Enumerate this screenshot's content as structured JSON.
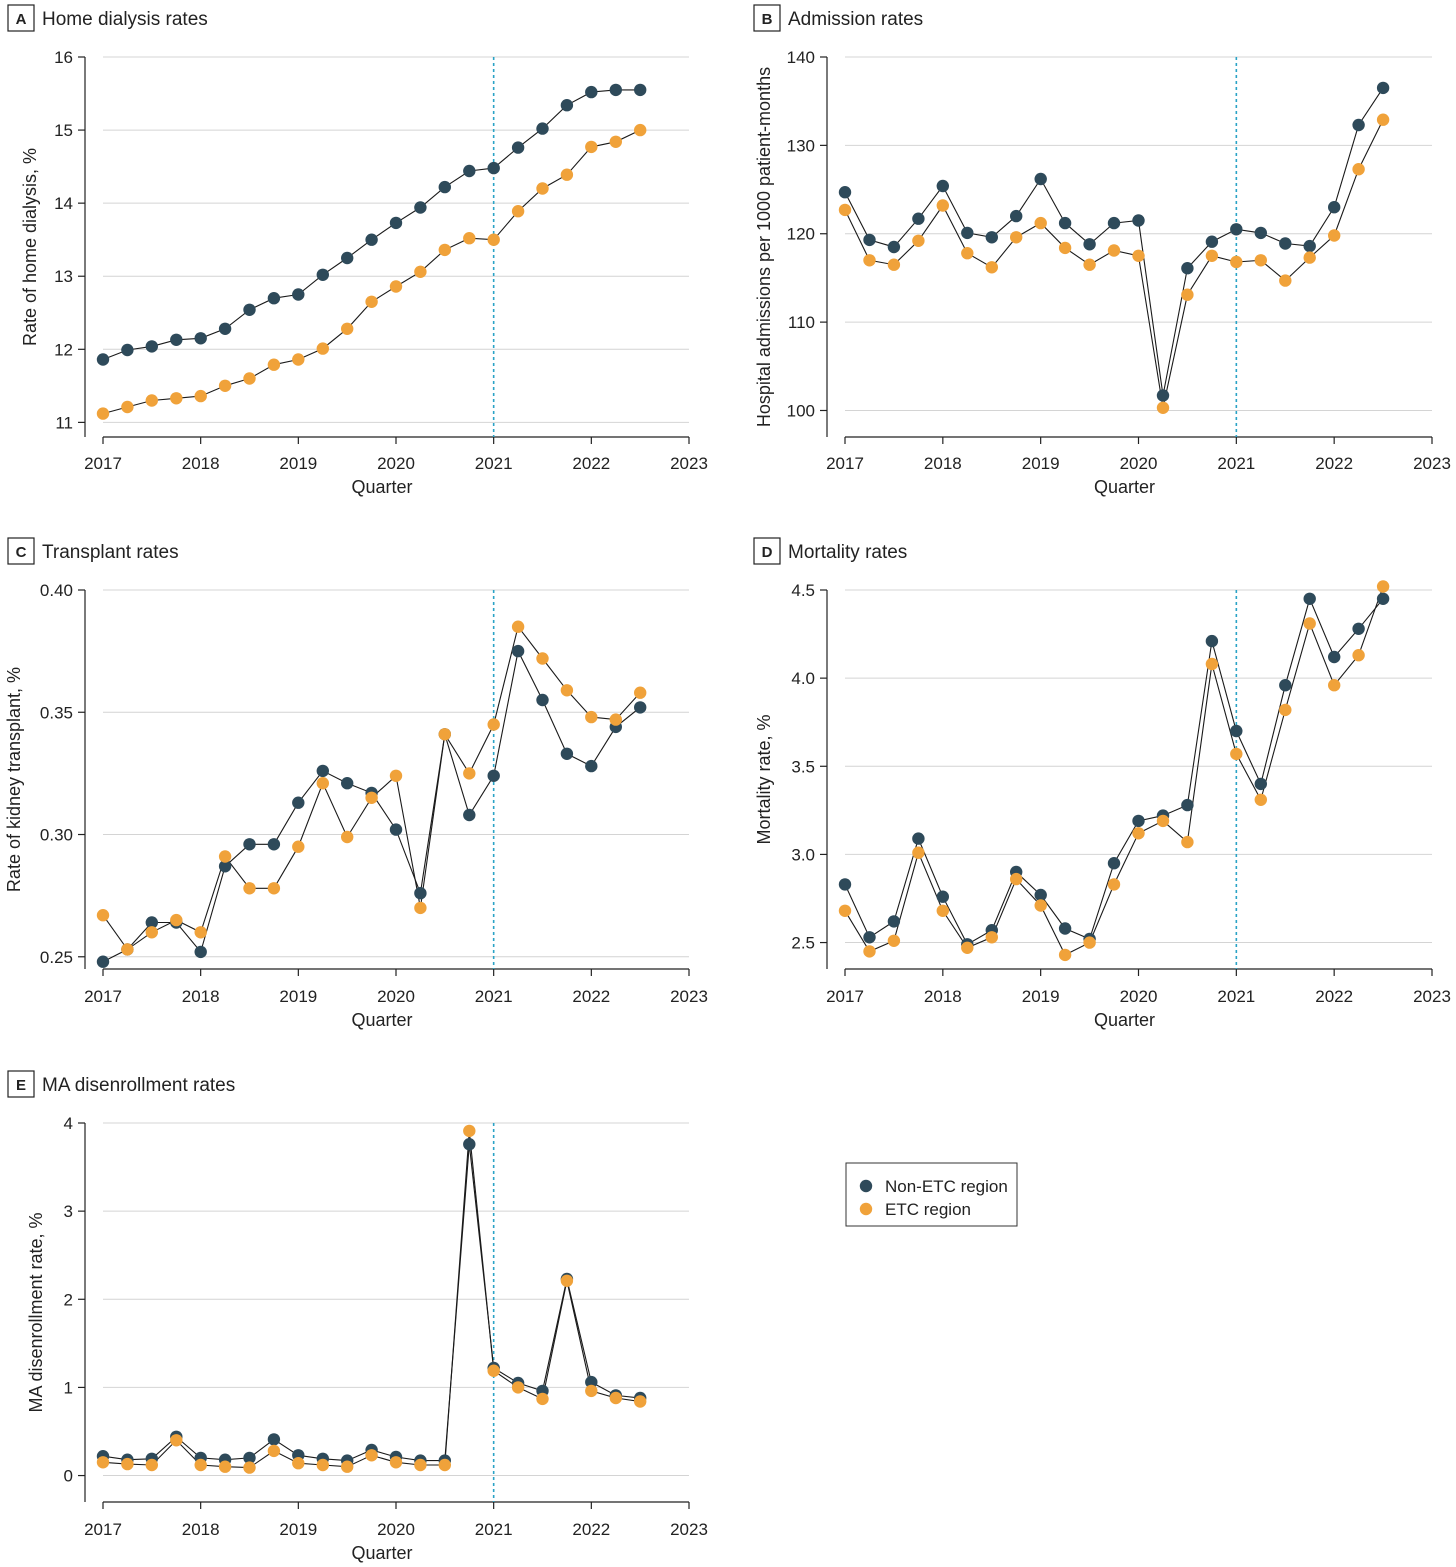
{
  "colors": {
    "non_etc": "#2e4a5a",
    "etc": "#f0a23a",
    "grid": "#d4d4d4",
    "reference_line": "#2aa3c6",
    "line": "#1a1a1a",
    "text": "#222222"
  },
  "legend": {
    "placement": "between panels D and E, right",
    "items": [
      "Non-ETC region",
      "ETC region"
    ]
  },
  "chart_data": [
    {
      "panel": "A",
      "title": "Home dialysis rates",
      "type": "line",
      "xlabel": "Quarter",
      "ylabel": "Rate of home dialysis, %",
      "xlim": [
        2017,
        2023
      ],
      "ylim": [
        10.8,
        16
      ],
      "xticks": [
        2017,
        2018,
        2019,
        2020,
        2021,
        2022,
        2023
      ],
      "yticks": [
        11,
        12,
        13,
        14,
        15,
        16
      ],
      "ytick_labels": [
        "11",
        "12",
        "13",
        "14",
        "15",
        "16"
      ],
      "grid": true,
      "vline": 2021,
      "x": [
        2017,
        2017.25,
        2017.5,
        2017.75,
        2018,
        2018.25,
        2018.5,
        2018.75,
        2019,
        2019.25,
        2019.5,
        2019.75,
        2020,
        2020.25,
        2020.5,
        2020.75,
        2021,
        2021.25,
        2021.5,
        2021.75,
        2022,
        2022.25,
        2022.5
      ],
      "series": [
        {
          "name": "Non-ETC region",
          "values": [
            11.86,
            11.99,
            12.04,
            12.13,
            12.15,
            12.28,
            12.54,
            12.7,
            12.75,
            13.02,
            13.25,
            13.5,
            13.73,
            13.94,
            14.22,
            14.44,
            14.48,
            14.76,
            15.02,
            15.34,
            15.52,
            15.55,
            15.55
          ]
        },
        {
          "name": "ETC region",
          "values": [
            11.12,
            11.21,
            11.3,
            11.33,
            11.36,
            11.5,
            11.6,
            11.79,
            11.86,
            12.01,
            12.28,
            12.65,
            12.86,
            13.06,
            13.36,
            13.52,
            13.5,
            13.89,
            14.2,
            14.39,
            14.77,
            14.84,
            15.0
          ]
        }
      ]
    },
    {
      "panel": "B",
      "title": "Admission rates",
      "type": "line",
      "xlabel": "Quarter",
      "ylabel": "Hospital admissions per 1000 patient-months",
      "xlim": [
        2017,
        2023
      ],
      "ylim": [
        97,
        140
      ],
      "xticks": [
        2017,
        2018,
        2019,
        2020,
        2021,
        2022,
        2023
      ],
      "yticks": [
        100,
        110,
        120,
        130,
        140
      ],
      "ytick_labels": [
        "100",
        "110",
        "120",
        "130",
        "140"
      ],
      "grid": true,
      "vline": 2021,
      "x": [
        2017,
        2017.25,
        2017.5,
        2017.75,
        2018,
        2018.25,
        2018.5,
        2018.75,
        2019,
        2019.25,
        2019.5,
        2019.75,
        2020,
        2020.25,
        2020.5,
        2020.75,
        2021,
        2021.25,
        2021.5,
        2021.75,
        2022,
        2022.25,
        2022.5
      ],
      "series": [
        {
          "name": "Non-ETC region",
          "values": [
            124.7,
            119.3,
            118.5,
            121.7,
            125.4,
            120.1,
            119.6,
            122.0,
            126.2,
            121.2,
            118.8,
            121.2,
            121.5,
            101.7,
            116.1,
            119.1,
            120.5,
            120.1,
            118.9,
            118.6,
            123.0,
            132.3,
            136.5
          ]
        },
        {
          "name": "ETC region",
          "values": [
            122.7,
            117.0,
            116.5,
            119.2,
            123.2,
            117.8,
            116.2,
            119.6,
            121.2,
            118.4,
            116.5,
            118.1,
            117.5,
            100.3,
            113.1,
            117.5,
            116.8,
            117.0,
            114.7,
            117.3,
            119.8,
            127.3,
            132.9
          ]
        }
      ]
    },
    {
      "panel": "C",
      "title": "Transplant rates",
      "type": "line",
      "xlabel": "Quarter",
      "ylabel": "Rate of kidney transplant, %",
      "xlim": [
        2017,
        2023
      ],
      "ylim": [
        0.245,
        0.4
      ],
      "xticks": [
        2017,
        2018,
        2019,
        2020,
        2021,
        2022,
        2023
      ],
      "yticks": [
        0.25,
        0.3,
        0.35,
        0.4
      ],
      "ytick_labels": [
        "0.25",
        "0.30",
        "0.35",
        "0.40"
      ],
      "grid": true,
      "vline": 2021,
      "x": [
        2017,
        2017.25,
        2017.5,
        2017.75,
        2018,
        2018.25,
        2018.5,
        2018.75,
        2019,
        2019.25,
        2019.5,
        2019.75,
        2020,
        2020.25,
        2020.5,
        2020.75,
        2021,
        2021.25,
        2021.5,
        2021.75,
        2022,
        2022.25,
        2022.5
      ],
      "series": [
        {
          "name": "Non-ETC region",
          "values": [
            0.248,
            0.253,
            0.264,
            0.264,
            0.252,
            0.287,
            0.296,
            0.296,
            0.313,
            0.326,
            0.321,
            0.317,
            0.302,
            0.276,
            0.341,
            0.308,
            0.324,
            0.375,
            0.355,
            0.333,
            0.328,
            0.344,
            0.352
          ]
        },
        {
          "name": "ETC region",
          "values": [
            0.267,
            0.253,
            0.26,
            0.265,
            0.26,
            0.291,
            0.278,
            0.278,
            0.295,
            0.321,
            0.299,
            0.315,
            0.324,
            0.27,
            0.341,
            0.325,
            0.345,
            0.385,
            0.372,
            0.359,
            0.348,
            0.347,
            0.358
          ]
        }
      ]
    },
    {
      "panel": "D",
      "title": "Mortality rates",
      "type": "line",
      "xlabel": "Quarter",
      "ylabel": "Mortality rate, %",
      "xlim": [
        2017,
        2023
      ],
      "ylim": [
        2.35,
        4.5
      ],
      "xticks": [
        2017,
        2018,
        2019,
        2020,
        2021,
        2022,
        2023
      ],
      "yticks": [
        2.5,
        3.0,
        3.5,
        4.0,
        4.5
      ],
      "ytick_labels": [
        "2.5",
        "3.0",
        "3.5",
        "4.0",
        "4.5"
      ],
      "grid": true,
      "vline": 2021,
      "x": [
        2017,
        2017.25,
        2017.5,
        2017.75,
        2018,
        2018.25,
        2018.5,
        2018.75,
        2019,
        2019.25,
        2019.5,
        2019.75,
        2020,
        2020.25,
        2020.5,
        2020.75,
        2021,
        2021.25,
        2021.5,
        2021.75,
        2022,
        2022.25,
        2022.5
      ],
      "series": [
        {
          "name": "Non-ETC region",
          "values": [
            2.83,
            2.53,
            2.62,
            3.09,
            2.76,
            2.49,
            2.57,
            2.9,
            2.77,
            2.58,
            2.52,
            2.95,
            3.19,
            3.22,
            3.28,
            4.21,
            3.7,
            3.4,
            3.96,
            4.45,
            4.12,
            4.28,
            4.45
          ]
        },
        {
          "name": "ETC region",
          "values": [
            2.68,
            2.45,
            2.51,
            3.01,
            2.68,
            2.47,
            2.53,
            2.86,
            2.71,
            2.43,
            2.5,
            2.83,
            3.12,
            3.19,
            3.07,
            4.08,
            3.57,
            3.31,
            3.82,
            4.31,
            3.96,
            4.13,
            4.52
          ]
        }
      ]
    },
    {
      "panel": "E",
      "title": "MA disenrollment rates",
      "type": "line",
      "xlabel": "Quarter",
      "ylabel": "MA disenrollment rate, %",
      "xlim": [
        2017,
        2023
      ],
      "ylim": [
        -0.3,
        4
      ],
      "xticks": [
        2017,
        2018,
        2019,
        2020,
        2021,
        2022,
        2023
      ],
      "yticks": [
        0,
        1,
        2,
        3,
        4
      ],
      "ytick_labels": [
        "0",
        "1",
        "2",
        "3",
        "4"
      ],
      "grid": true,
      "vline": 2021,
      "x": [
        2017,
        2017.25,
        2017.5,
        2017.75,
        2018,
        2018.25,
        2018.5,
        2018.75,
        2019,
        2019.25,
        2019.5,
        2019.75,
        2020,
        2020.25,
        2020.5,
        2020.75,
        2021,
        2021.25,
        2021.5,
        2021.75,
        2022,
        2022.25,
        2022.5
      ],
      "series": [
        {
          "name": "Non-ETC region",
          "values": [
            0.22,
            0.18,
            0.19,
            0.44,
            0.2,
            0.18,
            0.2,
            0.41,
            0.23,
            0.19,
            0.17,
            0.29,
            0.21,
            0.17,
            0.17,
            3.76,
            1.22,
            1.05,
            0.96,
            2.23,
            1.06,
            0.91,
            0.88
          ]
        },
        {
          "name": "ETC region",
          "values": [
            0.15,
            0.13,
            0.12,
            0.4,
            0.12,
            0.1,
            0.09,
            0.28,
            0.14,
            0.12,
            0.1,
            0.23,
            0.15,
            0.12,
            0.12,
            3.91,
            1.19,
            1.0,
            0.87,
            2.21,
            0.96,
            0.88,
            0.84
          ]
        }
      ]
    }
  ]
}
